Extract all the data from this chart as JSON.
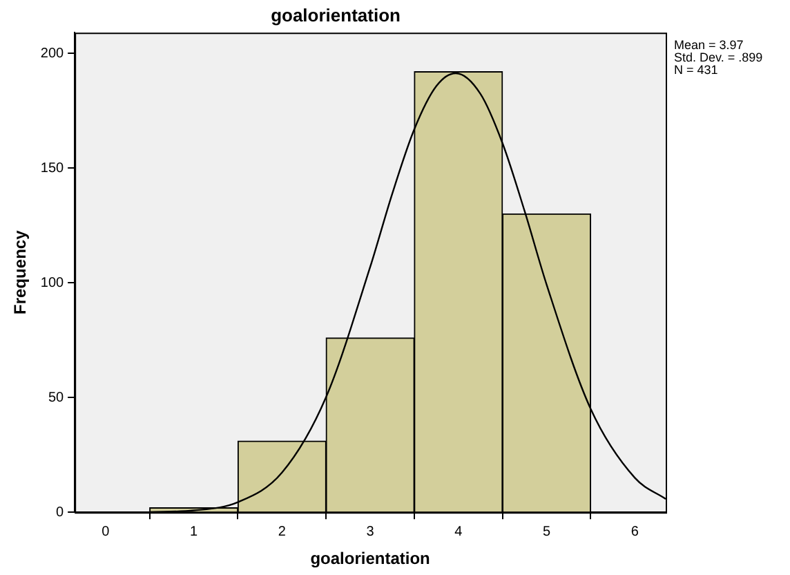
{
  "chart_data": {
    "type": "histogram",
    "title": "goalorientation",
    "xlabel": "goalorientation",
    "ylabel": "Frequency",
    "bins": [
      0.5,
      1.5,
      2.5,
      3.5,
      4.5,
      5.5
    ],
    "values": [
      2,
      31,
      76,
      192,
      130
    ],
    "color": "#d3cf9b",
    "series": [
      {
        "type": "line",
        "color": "#000000",
        "x": [
          0.5,
          1,
          1.5,
          2,
          2.5,
          3,
          3.25,
          3.5,
          3.75,
          3.97,
          4.25,
          4.5,
          4.75,
          5,
          5.5,
          6,
          6.35
        ],
        "values": [
          0.1,
          0.8,
          4.4,
          17.3,
          50.2,
          106.9,
          138.8,
          166.9,
          185.7,
          191.3,
          182.3,
          160.8,
          131.3,
          99.2,
          45,
          15,
          5.8
        ]
      }
    ],
    "xlim": [
      -0.35,
      6.35
    ],
    "xticks": [
      0,
      1,
      2,
      3,
      4,
      5,
      6
    ],
    "ylim": [
      0,
      209
    ],
    "yticks": [
      0,
      50,
      100,
      150,
      200
    ],
    "grid": false,
    "legend": false,
    "marker": "none",
    "line_style": "solid",
    "annotations": [
      "Mean = 3.97",
      "Std. Dev. = .899",
      "N = 431"
    ]
  }
}
